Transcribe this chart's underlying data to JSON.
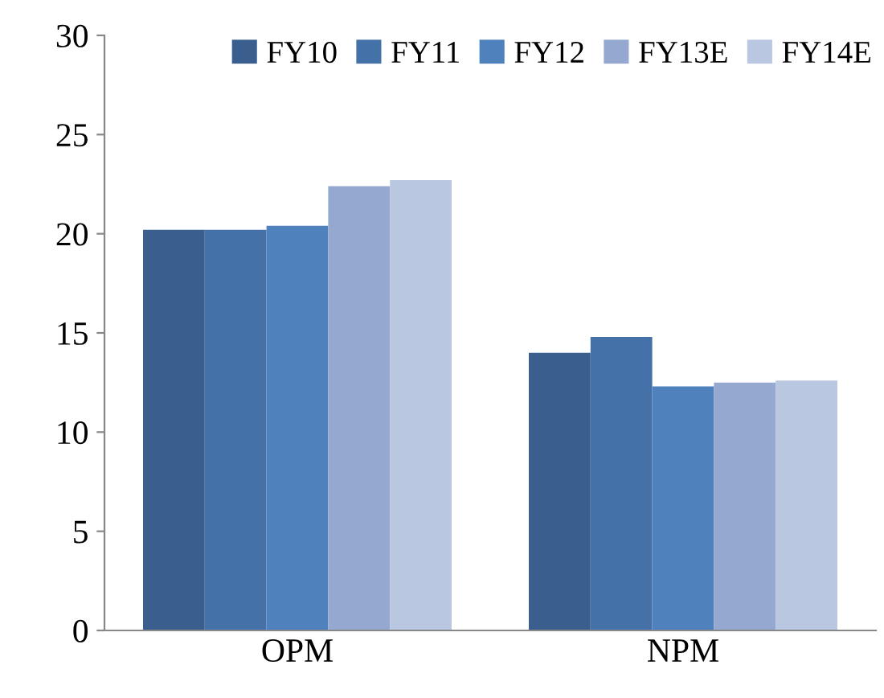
{
  "chart_data": {
    "type": "bar",
    "categories": [
      "OPM",
      "NPM"
    ],
    "series": [
      {
        "name": "FY10",
        "color": "#3a5f8e",
        "values": [
          20.2,
          14.0
        ]
      },
      {
        "name": "FY11",
        "color": "#4472a8",
        "values": [
          20.2,
          14.8
        ]
      },
      {
        "name": "FY12",
        "color": "#4f81bd",
        "values": [
          20.4,
          12.3
        ]
      },
      {
        "name": "FY13E",
        "color": "#95a9d0",
        "values": [
          22.4,
          12.5
        ]
      },
      {
        "name": "FY14E",
        "color": "#b9c7e1",
        "values": [
          22.7,
          12.6
        ]
      }
    ],
    "ylim": [
      0,
      30
    ],
    "yticks": [
      0,
      5,
      10,
      15,
      20,
      25,
      30
    ],
    "grid": false,
    "legend": "top"
  }
}
